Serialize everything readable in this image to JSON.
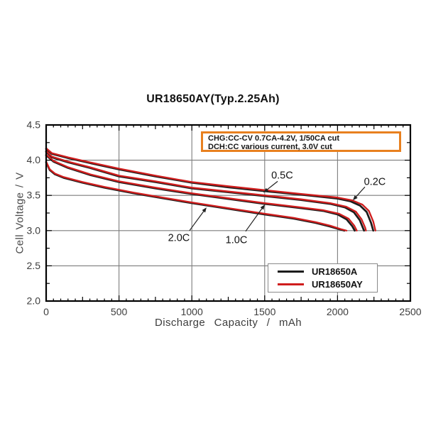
{
  "title": "UR18650AY(Typ.2.25Ah)",
  "info_box": {
    "line1": "CHG:CC-CV 0.7CA-4.2V, 1/50CA cut",
    "line2": "DCH:CC various current, 3.0V cut",
    "border_color": "#e8801f"
  },
  "legend": {
    "items": [
      {
        "label": "UR18650A",
        "color": "#1c1c1c"
      },
      {
        "label": "UR18650AY",
        "color": "#cf1d1d"
      }
    ]
  },
  "chart_data": {
    "type": "line",
    "title": "UR18650AY(Typ.2.25Ah)",
    "xlabel": "Discharge Capacity / mAh",
    "ylabel": "Cell Voltage / V",
    "xlim": [
      0,
      2500
    ],
    "ylim": [
      2.0,
      4.5
    ],
    "x_tick_labels": [
      "0",
      "500",
      "1000",
      "1500",
      "2000",
      "2500"
    ],
    "x_major_step": 500,
    "x_mid_step": 250,
    "x_minor_step": 50,
    "y_tick_labels": [
      "2.0",
      "2.5",
      "3.0",
      "3.5",
      "4.0",
      "4.5"
    ],
    "y_major_step": 0.5,
    "y_minor_step": 0.25,
    "grid": true,
    "grid_color": "#7d7d7d",
    "axis_color": "#000000",
    "series": [
      {
        "name": "UR18650A 0.2C",
        "model": "UR18650A",
        "rate": "0.2C",
        "color": "#1c1c1c",
        "points": [
          [
            0,
            4.16
          ],
          [
            40,
            4.09
          ],
          [
            150,
            4.03
          ],
          [
            300,
            3.96
          ],
          [
            500,
            3.87
          ],
          [
            750,
            3.77
          ],
          [
            1000,
            3.68
          ],
          [
            1250,
            3.615
          ],
          [
            1500,
            3.56
          ],
          [
            1750,
            3.51
          ],
          [
            2000,
            3.455
          ],
          [
            2090,
            3.415
          ],
          [
            2155,
            3.355
          ],
          [
            2200,
            3.265
          ],
          [
            2230,
            3.11
          ],
          [
            2245,
            3.0
          ]
        ]
      },
      {
        "name": "UR18650A 0.5C",
        "model": "UR18650A",
        "rate": "0.5C",
        "color": "#1c1c1c",
        "points": [
          [
            0,
            4.12
          ],
          [
            40,
            4.04
          ],
          [
            150,
            3.97
          ],
          [
            300,
            3.89
          ],
          [
            500,
            3.77
          ],
          [
            750,
            3.69
          ],
          [
            1000,
            3.6
          ],
          [
            1250,
            3.545
          ],
          [
            1500,
            3.49
          ],
          [
            1750,
            3.435
          ],
          [
            1950,
            3.38
          ],
          [
            2050,
            3.33
          ],
          [
            2112,
            3.26
          ],
          [
            2152,
            3.15
          ],
          [
            2176,
            3.03
          ],
          [
            2182,
            3.0
          ]
        ]
      },
      {
        "name": "UR18650A 1.0C",
        "model": "UR18650A",
        "rate": "1.0C",
        "color": "#1c1c1c",
        "points": [
          [
            0,
            4.07
          ],
          [
            50,
            3.98
          ],
          [
            150,
            3.89
          ],
          [
            300,
            3.79
          ],
          [
            500,
            3.69
          ],
          [
            750,
            3.6
          ],
          [
            1000,
            3.52
          ],
          [
            1250,
            3.45
          ],
          [
            1500,
            3.38
          ],
          [
            1750,
            3.32
          ],
          [
            1900,
            3.28
          ],
          [
            2000,
            3.23
          ],
          [
            2062,
            3.16
          ],
          [
            2102,
            3.06
          ],
          [
            2118,
            3.0
          ]
        ]
      },
      {
        "name": "UR18650A 2.0C",
        "model": "UR18650A",
        "rate": "2.0C",
        "color": "#1c1c1c",
        "points": [
          [
            0,
            3.97
          ],
          [
            25,
            3.86
          ],
          [
            60,
            3.8
          ],
          [
            120,
            3.75
          ],
          [
            250,
            3.68
          ],
          [
            400,
            3.61
          ],
          [
            600,
            3.53
          ],
          [
            800,
            3.46
          ],
          [
            1000,
            3.39
          ],
          [
            1250,
            3.31
          ],
          [
            1500,
            3.23
          ],
          [
            1700,
            3.17
          ],
          [
            1850,
            3.11
          ],
          [
            1945,
            3.06
          ],
          [
            2012,
            3.02
          ],
          [
            2048,
            3.0
          ]
        ]
      },
      {
        "name": "UR18650AY 0.2C",
        "model": "UR18650AY",
        "rate": "0.2C",
        "color": "#cf1d1d",
        "points": [
          [
            0,
            4.17
          ],
          [
            40,
            4.1
          ],
          [
            150,
            4.04
          ],
          [
            300,
            3.97
          ],
          [
            500,
            3.88
          ],
          [
            750,
            3.78
          ],
          [
            1000,
            3.69
          ],
          [
            1250,
            3.63
          ],
          [
            1500,
            3.575
          ],
          [
            1750,
            3.52
          ],
          [
            2000,
            3.47
          ],
          [
            2100,
            3.43
          ],
          [
            2170,
            3.37
          ],
          [
            2215,
            3.28
          ],
          [
            2245,
            3.13
          ],
          [
            2260,
            3.0
          ]
        ]
      },
      {
        "name": "UR18650AY 0.5C",
        "model": "UR18650AY",
        "rate": "0.5C",
        "color": "#cf1d1d",
        "points": [
          [
            0,
            4.13
          ],
          [
            40,
            4.05
          ],
          [
            150,
            3.98
          ],
          [
            300,
            3.9
          ],
          [
            500,
            3.78
          ],
          [
            750,
            3.7
          ],
          [
            1000,
            3.61
          ],
          [
            1250,
            3.555
          ],
          [
            1500,
            3.5
          ],
          [
            1750,
            3.445
          ],
          [
            1950,
            3.39
          ],
          [
            2060,
            3.34
          ],
          [
            2125,
            3.27
          ],
          [
            2165,
            3.16
          ],
          [
            2190,
            3.04
          ],
          [
            2195,
            3.0
          ]
        ]
      },
      {
        "name": "UR18650AY 1.0C",
        "model": "UR18650AY",
        "rate": "1.0C",
        "color": "#cf1d1d",
        "points": [
          [
            0,
            4.08
          ],
          [
            50,
            3.99
          ],
          [
            150,
            3.9
          ],
          [
            300,
            3.8
          ],
          [
            500,
            3.7
          ],
          [
            750,
            3.61
          ],
          [
            1000,
            3.53
          ],
          [
            1250,
            3.46
          ],
          [
            1500,
            3.39
          ],
          [
            1750,
            3.33
          ],
          [
            1900,
            3.29
          ],
          [
            2010,
            3.24
          ],
          [
            2075,
            3.17
          ],
          [
            2115,
            3.07
          ],
          [
            2132,
            3.0
          ]
        ]
      },
      {
        "name": "UR18650AY 2.0C",
        "model": "UR18650AY",
        "rate": "2.0C",
        "color": "#cf1d1d",
        "points": [
          [
            0,
            3.98
          ],
          [
            25,
            3.87
          ],
          [
            60,
            3.81
          ],
          [
            120,
            3.76
          ],
          [
            250,
            3.69
          ],
          [
            400,
            3.62
          ],
          [
            600,
            3.54
          ],
          [
            800,
            3.47
          ],
          [
            1000,
            3.4
          ],
          [
            1250,
            3.32
          ],
          [
            1500,
            3.24
          ],
          [
            1700,
            3.18
          ],
          [
            1850,
            3.12
          ],
          [
            1950,
            3.07
          ],
          [
            2025,
            3.02
          ],
          [
            2062,
            3.0
          ]
        ]
      }
    ],
    "annotations": [
      {
        "label": "0.5C",
        "text_x": 1620,
        "text_y": 3.79,
        "arrow_from_x": 1589,
        "arrow_from_y": 3.7,
        "arrow_to_x": 1491,
        "arrow_to_y": 3.54
      },
      {
        "label": "0.2C",
        "text_x": 2256,
        "text_y": 3.7,
        "arrow_from_x": 2188,
        "arrow_from_y": 3.62,
        "arrow_to_x": 2105,
        "arrow_to_y": 3.43
      },
      {
        "label": "2.0C",
        "text_x": 911,
        "text_y": 2.9,
        "arrow_from_x": 984,
        "arrow_from_y": 3.0,
        "arrow_to_x": 1101,
        "arrow_to_y": 3.33
      },
      {
        "label": "1.0C",
        "text_x": 1306,
        "text_y": 2.87,
        "arrow_from_x": 1369,
        "arrow_from_y": 2.99,
        "arrow_to_x": 1501,
        "arrow_to_y": 3.37
      }
    ]
  }
}
